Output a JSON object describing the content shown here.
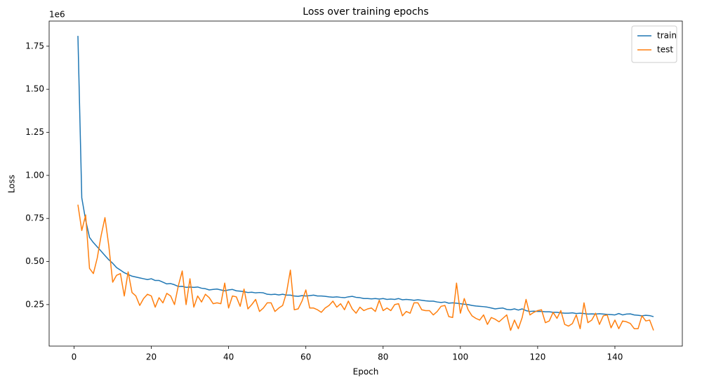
{
  "chart_data": {
    "type": "line",
    "title": "Loss over training epochs",
    "xlabel": "Epoch",
    "ylabel": "Loss",
    "y_offset": "1e6",
    "x": [
      1,
      2,
      3,
      4,
      5,
      6,
      7,
      8,
      9,
      10,
      11,
      12,
      13,
      14,
      15,
      16,
      17,
      18,
      19,
      20,
      21,
      22,
      23,
      24,
      25,
      26,
      27,
      28,
      29,
      30,
      31,
      32,
      33,
      34,
      35,
      36,
      37,
      38,
      39,
      40,
      41,
      42,
      43,
      44,
      45,
      46,
      47,
      48,
      49,
      50,
      51,
      52,
      53,
      54,
      55,
      56,
      57,
      58,
      59,
      60,
      61,
      62,
      63,
      64,
      65,
      66,
      67,
      68,
      69,
      70,
      71,
      72,
      73,
      74,
      75,
      76,
      77,
      78,
      79,
      80,
      81,
      82,
      83,
      84,
      85,
      86,
      87,
      88,
      89,
      90,
      91,
      92,
      93,
      94,
      95,
      96,
      97,
      98,
      99,
      100,
      101,
      102,
      103,
      104,
      105,
      106,
      107,
      108,
      109,
      110,
      111,
      112,
      113,
      114,
      115,
      116,
      117,
      118,
      119,
      120,
      121,
      122,
      123,
      124,
      125,
      126,
      127,
      128,
      129,
      130,
      131,
      132,
      133,
      134,
      135,
      136,
      137,
      138,
      139,
      140,
      141,
      142,
      143,
      144,
      145,
      146,
      147,
      148,
      149,
      150
    ],
    "series": [
      {
        "name": "train",
        "color": "#1f77b4",
        "values": [
          1.81,
          0.87,
          0.74,
          0.64,
          0.61,
          0.585,
          0.56,
          0.535,
          0.51,
          0.49,
          0.465,
          0.45,
          0.435,
          0.425,
          0.415,
          0.41,
          0.405,
          0.4,
          0.395,
          0.4,
          0.39,
          0.39,
          0.38,
          0.37,
          0.372,
          0.365,
          0.355,
          0.356,
          0.35,
          0.352,
          0.35,
          0.352,
          0.345,
          0.342,
          0.335,
          0.338,
          0.34,
          0.335,
          0.33,
          0.335,
          0.338,
          0.33,
          0.328,
          0.325,
          0.32,
          0.322,
          0.318,
          0.32,
          0.318,
          0.31,
          0.308,
          0.31,
          0.306,
          0.31,
          0.305,
          0.305,
          0.3,
          0.298,
          0.302,
          0.3,
          0.302,
          0.305,
          0.3,
          0.3,
          0.298,
          0.295,
          0.293,
          0.295,
          0.292,
          0.29,
          0.295,
          0.298,
          0.292,
          0.29,
          0.285,
          0.285,
          0.283,
          0.285,
          0.282,
          0.285,
          0.28,
          0.282,
          0.28,
          0.285,
          0.278,
          0.28,
          0.278,
          0.275,
          0.278,
          0.275,
          0.272,
          0.27,
          0.27,
          0.265,
          0.262,
          0.265,
          0.258,
          0.26,
          0.258,
          0.255,
          0.252,
          0.25,
          0.245,
          0.242,
          0.24,
          0.238,
          0.235,
          0.23,
          0.225,
          0.228,
          0.23,
          0.222,
          0.22,
          0.225,
          0.218,
          0.225,
          0.215,
          0.21,
          0.212,
          0.21,
          0.21,
          0.208,
          0.208,
          0.205,
          0.205,
          0.202,
          0.2,
          0.2,
          0.202,
          0.198,
          0.2,
          0.198,
          0.195,
          0.196,
          0.195,
          0.197,
          0.195,
          0.193,
          0.192,
          0.19,
          0.198,
          0.19,
          0.195,
          0.196,
          0.19,
          0.188,
          0.185,
          0.188,
          0.186,
          0.18
        ]
      },
      {
        "name": "test",
        "color": "#ff7f0e",
        "values": [
          0.83,
          0.68,
          0.77,
          0.46,
          0.43,
          0.52,
          0.65,
          0.755,
          0.59,
          0.38,
          0.42,
          0.43,
          0.3,
          0.44,
          0.32,
          0.3,
          0.245,
          0.285,
          0.31,
          0.3,
          0.235,
          0.29,
          0.26,
          0.315,
          0.3,
          0.25,
          0.36,
          0.445,
          0.25,
          0.4,
          0.235,
          0.3,
          0.265,
          0.31,
          0.29,
          0.255,
          0.26,
          0.255,
          0.375,
          0.23,
          0.3,
          0.295,
          0.24,
          0.34,
          0.225,
          0.25,
          0.28,
          0.21,
          0.23,
          0.26,
          0.26,
          0.21,
          0.23,
          0.245,
          0.32,
          0.45,
          0.22,
          0.225,
          0.27,
          0.335,
          0.23,
          0.23,
          0.22,
          0.205,
          0.23,
          0.245,
          0.27,
          0.235,
          0.255,
          0.22,
          0.27,
          0.225,
          0.2,
          0.235,
          0.215,
          0.225,
          0.23,
          0.21,
          0.275,
          0.215,
          0.23,
          0.215,
          0.25,
          0.255,
          0.185,
          0.21,
          0.2,
          0.26,
          0.26,
          0.22,
          0.215,
          0.215,
          0.19,
          0.21,
          0.24,
          0.245,
          0.18,
          0.175,
          0.375,
          0.2,
          0.285,
          0.22,
          0.185,
          0.17,
          0.16,
          0.19,
          0.135,
          0.175,
          0.165,
          0.15,
          0.17,
          0.19,
          0.1,
          0.16,
          0.11,
          0.175,
          0.28,
          0.19,
          0.205,
          0.215,
          0.22,
          0.145,
          0.155,
          0.205,
          0.17,
          0.215,
          0.135,
          0.125,
          0.14,
          0.19,
          0.11,
          0.26,
          0.145,
          0.16,
          0.2,
          0.135,
          0.185,
          0.19,
          0.115,
          0.16,
          0.11,
          0.155,
          0.15,
          0.14,
          0.11,
          0.11,
          0.185,
          0.155,
          0.16,
          0.1
        ]
      }
    ],
    "xlim": [
      -6.45,
      157.45
    ],
    "xticks": [
      0,
      20,
      40,
      60,
      80,
      100,
      120,
      140
    ],
    "ylim": [
      0.009,
      1.896
    ],
    "yticks": [
      {
        "value": 0.25,
        "label": "0.25"
      },
      {
        "value": 0.5,
        "label": "0.50"
      },
      {
        "value": 0.75,
        "label": "0.75"
      },
      {
        "value": 1,
        "label": "1.00"
      },
      {
        "value": 1.25,
        "label": "1.25"
      },
      {
        "value": 1.5,
        "label": "1.50"
      },
      {
        "value": 1.75,
        "label": "1.75"
      }
    ],
    "grid": false,
    "legend": "upper right"
  }
}
